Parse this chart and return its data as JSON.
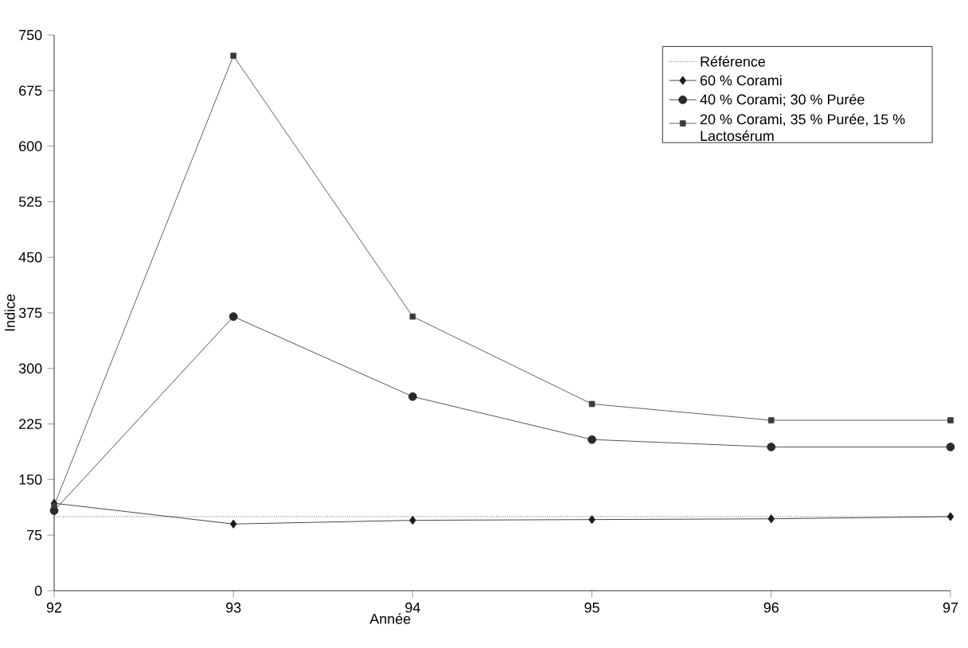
{
  "chart_data": {
    "type": "line",
    "xlabel": "Année",
    "ylabel": "Indice",
    "x": [
      92,
      93,
      94,
      95,
      96,
      97
    ],
    "xlim": [
      92,
      97
    ],
    "xticks": [
      92,
      93,
      94,
      95,
      96,
      97
    ],
    "ylim": [
      0,
      750
    ],
    "yticks": [
      0,
      75,
      150,
      225,
      300,
      375,
      450,
      525,
      600,
      675,
      750
    ],
    "legend": "top right",
    "grid": false,
    "series": [
      {
        "name": "Référence",
        "color": "#000000",
        "marker": "none",
        "line_style": "dotted",
        "values": [
          100,
          100,
          100,
          100,
          100,
          100
        ]
      },
      {
        "name": "60 % Corami",
        "color": "#1a1a1a",
        "marker": "diamond",
        "line_style": "solid",
        "values": [
          118,
          90,
          95,
          96,
          97,
          100
        ]
      },
      {
        "name": "40 % Corami; 30 % Purée",
        "color": "#2a2a2a",
        "marker": "circle",
        "line_style": "solid",
        "values": [
          108,
          370,
          262,
          204,
          194,
          194
        ]
      },
      {
        "name": "20 % Corami, 35 % Purée, 15 % Lactosérum",
        "color": "#3a3a3a",
        "marker": "square",
        "line_style": "solid",
        "values": [
          115,
          722,
          370,
          252,
          230,
          230
        ]
      }
    ]
  }
}
